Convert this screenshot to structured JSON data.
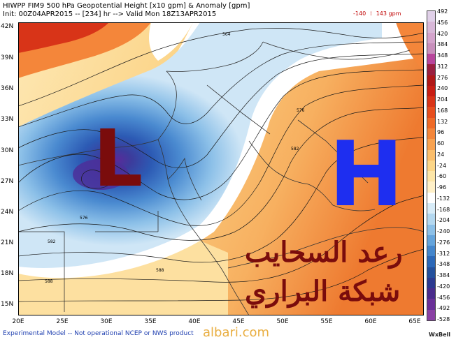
{
  "header": {
    "line1": "HIWPP FIM9 500 hPa Geopotential Height [x10 gpm] & Anomaly [gpm]",
    "line2": "Init: 00Z04APR2015 -- [234] hr --> Valid Mon 18Z13APR2015"
  },
  "range": {
    "min_label": "-140",
    "max_label": "143 gpm"
  },
  "axes": {
    "lat_labels": [
      "42N",
      "39N",
      "36N",
      "33N",
      "30N",
      "27N",
      "24N",
      "21N",
      "18N",
      "15N"
    ],
    "lon_labels": [
      "20E",
      "25E",
      "30E",
      "35E",
      "40E",
      "45E",
      "50E",
      "55E",
      "60E",
      "65E"
    ]
  },
  "contour_labels": [
    "564",
    "576",
    "582",
    "576",
    "582",
    "588",
    "588"
  ],
  "colorbar": {
    "labels": [
      "492",
      "456",
      "420",
      "384",
      "348",
      "312",
      "276",
      "240",
      "204",
      "168",
      "132",
      "96",
      "60",
      "24",
      "-24",
      "-60",
      "-96",
      "-132",
      "-168",
      "-204",
      "-240",
      "-276",
      "-312",
      "-348",
      "-384",
      "-420",
      "-456",
      "-492",
      "-528"
    ],
    "colors": [
      "#e0d0e8",
      "#d8b8d8",
      "#d4a4cc",
      "#c890bc",
      "#b8469c",
      "#9a2040",
      "#b01818",
      "#c81e14",
      "#d83418",
      "#e64e1e",
      "#ee6a28",
      "#f4863a",
      "#f8a250",
      "#fbbe6c",
      "#fcd688",
      "#fde6a8",
      "#fff0c8",
      "#ffffff",
      "#d8ecf8",
      "#b4d8f0",
      "#8cc0e8",
      "#64a4dc",
      "#4486cc",
      "#2c68b8",
      "#24509c",
      "#2c3a90",
      "#4a2c8c",
      "#6a3098",
      "#8a40a4"
    ]
  },
  "overlay": {
    "low_letter": "L",
    "high_letter": "H",
    "arabic_line1": "رعد السحايب",
    "arabic_line2": "شبكة البراري",
    "watermark": "albari.com"
  },
  "footer": {
    "disclaimer": "Experimental Model -- Not operational NCEP or NWS product",
    "brand": "WxBell"
  }
}
